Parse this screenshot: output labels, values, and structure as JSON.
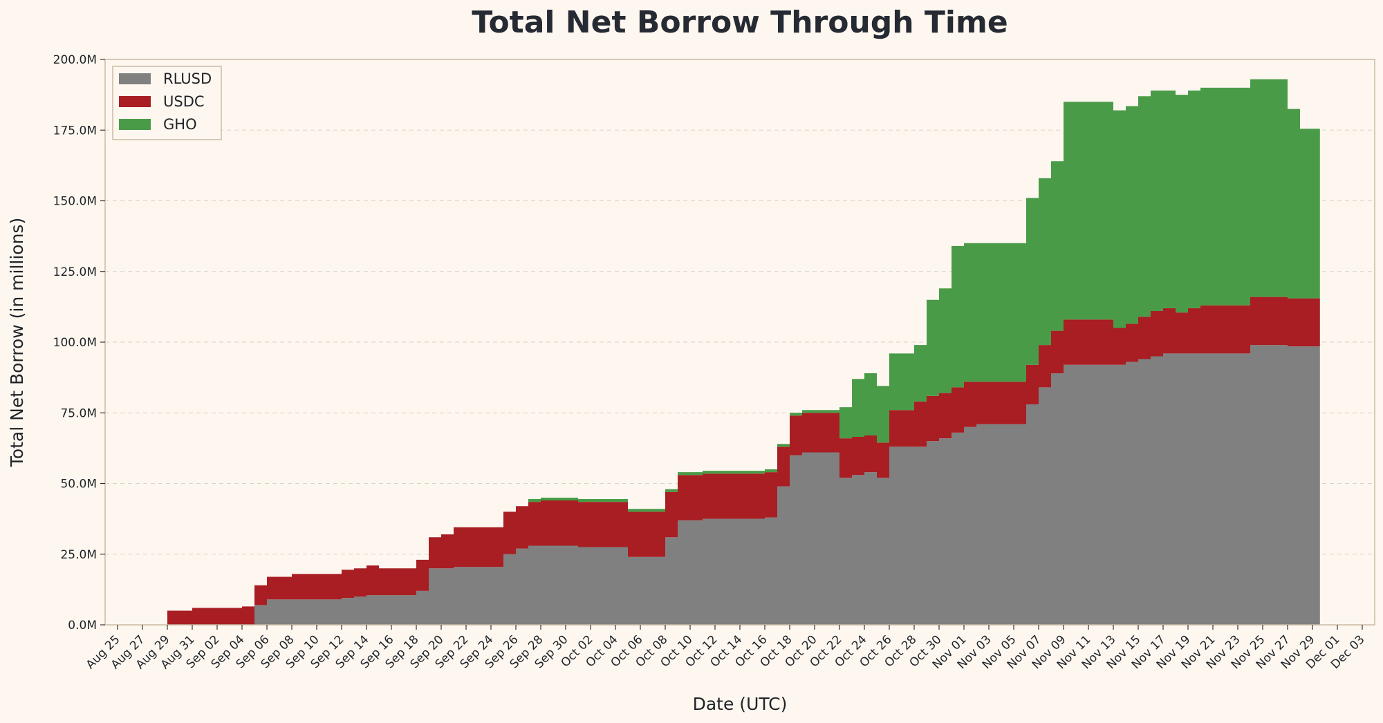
{
  "chart_data": {
    "type": "area",
    "stacked": true,
    "title": "Total Net Borrow Through Time",
    "xlabel": "Date (UTC)",
    "ylabel": "Total Net Borrow (in millions)",
    "ylim": [
      0,
      200
    ],
    "yticks": [
      {
        "value": 0,
        "label": "0.0M"
      },
      {
        "value": 25,
        "label": "25.0M"
      },
      {
        "value": 50,
        "label": "50.0M"
      },
      {
        "value": 75,
        "label": "75.0M"
      },
      {
        "value": 100,
        "label": "100.0M"
      },
      {
        "value": 125,
        "label": "125.0M"
      },
      {
        "value": 150,
        "label": "150.0M"
      },
      {
        "value": 175,
        "label": "175.0M"
      },
      {
        "value": 200,
        "label": "200.0M"
      }
    ],
    "xlim": [
      "2025-08-24",
      "2025-12-04"
    ],
    "xticks": [
      "Aug 25",
      "Aug 27",
      "Aug 29",
      "Aug 31",
      "Sep 02",
      "Sep 04",
      "Sep 06",
      "Sep 08",
      "Sep 10",
      "Sep 12",
      "Sep 14",
      "Sep 16",
      "Sep 18",
      "Sep 20",
      "Sep 22",
      "Sep 24",
      "Sep 26",
      "Sep 28",
      "Sep 30",
      "Oct 02",
      "Oct 04",
      "Oct 06",
      "Oct 08",
      "Oct 10",
      "Oct 12",
      "Oct 14",
      "Oct 16",
      "Oct 18",
      "Oct 20",
      "Oct 22",
      "Oct 24",
      "Oct 26",
      "Oct 28",
      "Oct 30",
      "Nov 01",
      "Nov 03",
      "Nov 05",
      "Nov 07",
      "Nov 09",
      "Nov 11",
      "Nov 13",
      "Nov 15",
      "Nov 17",
      "Nov 19",
      "Nov 21",
      "Nov 23",
      "Nov 25",
      "Nov 27",
      "Nov 29",
      "Dec 01",
      "Dec 03"
    ],
    "grid": "horizontal",
    "legend_position": "top-left",
    "x": [
      "2025-08-29",
      "2025-08-30",
      "2025-08-31",
      "2025-09-01",
      "2025-09-02",
      "2025-09-03",
      "2025-09-04",
      "2025-09-05",
      "2025-09-06",
      "2025-09-07",
      "2025-09-08",
      "2025-09-09",
      "2025-09-10",
      "2025-09-11",
      "2025-09-12",
      "2025-09-13",
      "2025-09-14",
      "2025-09-15",
      "2025-09-16",
      "2025-09-17",
      "2025-09-18",
      "2025-09-19",
      "2025-09-20",
      "2025-09-21",
      "2025-09-22",
      "2025-09-23",
      "2025-09-24",
      "2025-09-25",
      "2025-09-26",
      "2025-09-27",
      "2025-09-28",
      "2025-09-29",
      "2025-09-30",
      "2025-10-01",
      "2025-10-02",
      "2025-10-03",
      "2025-10-04",
      "2025-10-05",
      "2025-10-06",
      "2025-10-07",
      "2025-10-08",
      "2025-10-09",
      "2025-10-10",
      "2025-10-11",
      "2025-10-12",
      "2025-10-13",
      "2025-10-14",
      "2025-10-15",
      "2025-10-16",
      "2025-10-17",
      "2025-10-18",
      "2025-10-19",
      "2025-10-20",
      "2025-10-21",
      "2025-10-22",
      "2025-10-23",
      "2025-10-24",
      "2025-10-25",
      "2025-10-26",
      "2025-10-27",
      "2025-10-28",
      "2025-10-29",
      "2025-10-30",
      "2025-10-31",
      "2025-11-01",
      "2025-11-02",
      "2025-11-03",
      "2025-11-04",
      "2025-11-05",
      "2025-11-06",
      "2025-11-07",
      "2025-11-08",
      "2025-11-09",
      "2025-11-10",
      "2025-11-11",
      "2025-11-12",
      "2025-11-13",
      "2025-11-14",
      "2025-11-15",
      "2025-11-16",
      "2025-11-17",
      "2025-11-18",
      "2025-11-19",
      "2025-11-20",
      "2025-11-21",
      "2025-11-22",
      "2025-11-23",
      "2025-11-24",
      "2025-11-25",
      "2025-11-26",
      "2025-11-27",
      "2025-11-28",
      "2025-11-29"
    ],
    "series": [
      {
        "name": "RLUSD",
        "color": "#808080",
        "values": [
          0,
          0,
          0,
          0,
          0,
          0,
          0,
          7,
          9,
          9,
          9,
          9,
          9,
          9,
          9.5,
          10,
          10.5,
          10.5,
          10.5,
          10.5,
          12,
          20,
          20,
          20.5,
          20.5,
          20.5,
          20.5,
          25,
          27,
          28,
          28,
          28,
          28,
          27.5,
          27.5,
          27.5,
          27.5,
          24,
          24,
          24,
          31,
          37,
          37,
          37.5,
          37.5,
          37.5,
          37.5,
          37.5,
          38,
          49,
          60,
          61,
          61,
          61,
          52,
          53,
          54,
          52,
          63,
          63,
          63,
          65,
          66,
          68,
          70,
          71,
          71,
          71,
          71,
          78,
          84,
          89,
          92,
          92,
          92,
          92,
          92,
          93,
          94,
          95,
          96,
          96,
          96,
          96,
          96,
          96,
          96,
          99,
          99,
          99,
          98.5,
          98.5,
          98.5
        ]
      },
      {
        "name": "USDC",
        "color": "#a81e22",
        "values": [
          5,
          5,
          6,
          6,
          6,
          6,
          6.5,
          7,
          8,
          8,
          9,
          9,
          9,
          9,
          10,
          10,
          10.5,
          9.5,
          9.5,
          9.5,
          11,
          11,
          12,
          14,
          14,
          14,
          14,
          15,
          15,
          15.5,
          16,
          16,
          16,
          16,
          16,
          16,
          16,
          16,
          16,
          16,
          16,
          16,
          16,
          16,
          16,
          16,
          16,
          16,
          16,
          14,
          14,
          14,
          14,
          14,
          14,
          13.5,
          13,
          12.5,
          13,
          13,
          16,
          16,
          16,
          16,
          16,
          15,
          15,
          15,
          15,
          14,
          15,
          15,
          16,
          16,
          16,
          16,
          13,
          13.5,
          15,
          16,
          16,
          14.5,
          16,
          17,
          17,
          17,
          17,
          17,
          17,
          17,
          17,
          17,
          17
        ]
      },
      {
        "name": "GHO",
        "color": "#4a9b47",
        "values": [
          0,
          0,
          0,
          0,
          0,
          0,
          0,
          0,
          0,
          0,
          0,
          0,
          0,
          0,
          0,
          0,
          0,
          0,
          0,
          0,
          0,
          0,
          0,
          0,
          0,
          0,
          0,
          0,
          0,
          1,
          1,
          1,
          1,
          1,
          1,
          1,
          1,
          1,
          1,
          1,
          1,
          1,
          1,
          1,
          1,
          1,
          1,
          1,
          1,
          1,
          1,
          1,
          1,
          1,
          11,
          20.5,
          22,
          20,
          20,
          20,
          20,
          34,
          37,
          50,
          49,
          49,
          49,
          49,
          49,
          59,
          59,
          60,
          77,
          77,
          77,
          77,
          77,
          77,
          78,
          78,
          77,
          77,
          77,
          77,
          77,
          77,
          77,
          77,
          77,
          77,
          67,
          60,
          60
        ]
      }
    ]
  }
}
